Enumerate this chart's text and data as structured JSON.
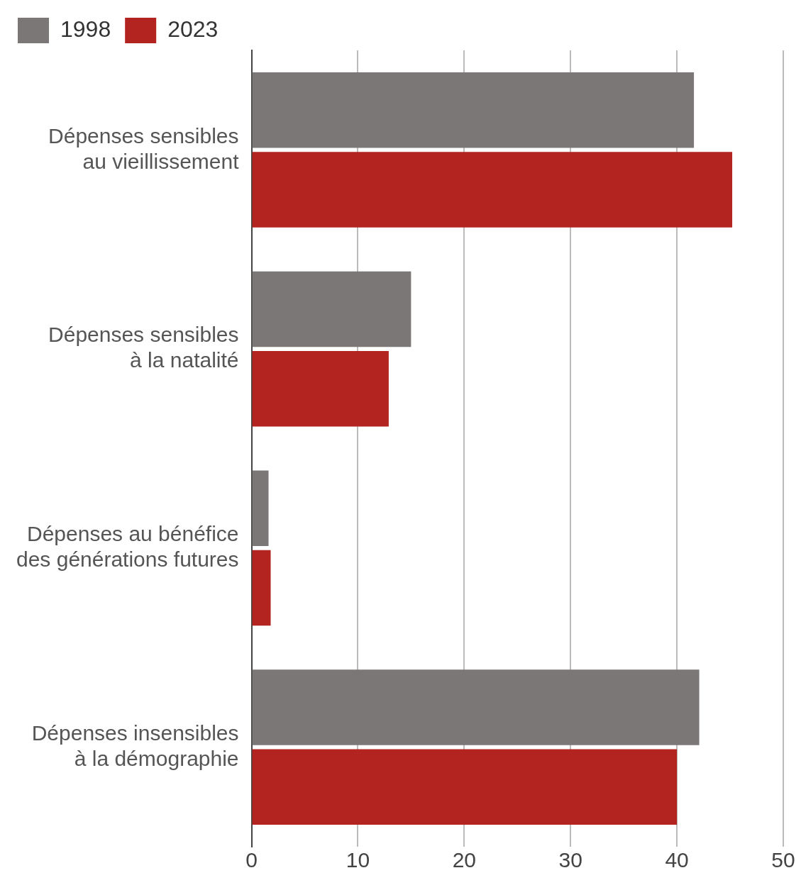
{
  "chart_data": {
    "type": "bar",
    "orientation": "horizontal",
    "categories": [
      "Dépenses sensibles au vieillissement",
      "Dépenses sensibles à la natalité",
      "Dépenses au bénéfice des générations futures",
      "Dépenses insensibles à la démographie"
    ],
    "series": [
      {
        "name": "1998",
        "color": "#7a7776",
        "values": [
          41.6,
          15.0,
          1.6,
          42.1
        ]
      },
      {
        "name": "2023",
        "color": "#b3231f",
        "values": [
          45.2,
          12.9,
          1.8,
          40.0
        ]
      }
    ],
    "xlim": [
      0,
      50
    ],
    "xticks": [
      0,
      10,
      20,
      30,
      40,
      50
    ],
    "grid": "x",
    "legend": "top left"
  }
}
